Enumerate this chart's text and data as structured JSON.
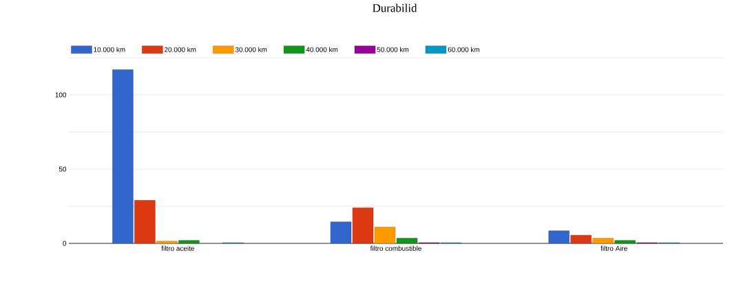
{
  "chart_data": {
    "type": "bar",
    "title": "Durabilid",
    "categories": [
      "filtro aceite",
      "filtro combustible",
      "filtro Aire"
    ],
    "series": [
      {
        "name": "10.000 km",
        "color": "#3366cc",
        "values": [
          117,
          14.5,
          8.5
        ]
      },
      {
        "name": "20.000 km",
        "color": "#dc3912",
        "values": [
          29,
          24,
          5.5
        ]
      },
      {
        "name": "30.000 km",
        "color": "#ff9900",
        "values": [
          1.5,
          11,
          3.5
        ]
      },
      {
        "name": "40.000 km",
        "color": "#109618",
        "values": [
          2,
          3.5,
          2
        ]
      },
      {
        "name": "50.000 km",
        "color": "#990099",
        "values": [
          null,
          0.5,
          0.5
        ]
      },
      {
        "name": "60.000 km",
        "color": "#0099c6",
        "values": [
          0.5,
          0.5,
          0.5
        ]
      }
    ],
    "ylim": [
      0,
      125
    ],
    "yticks": [
      0,
      {
        "value": 25,
        "label": null
      },
      50,
      {
        "value": 75,
        "label": null
      },
      100,
      {
        "value": 125,
        "label": null
      }
    ],
    "grid": "y",
    "legend": "top left"
  }
}
